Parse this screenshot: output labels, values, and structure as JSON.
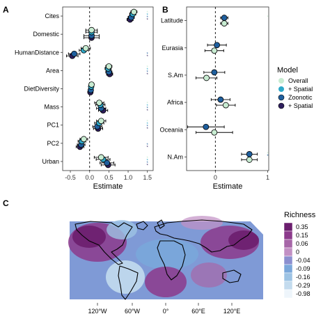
{
  "panel_labels": {
    "a": "A",
    "b": "B",
    "c": "C"
  },
  "colors": {
    "overall": "#c8ecd2",
    "overall_spatial": "#2fa9c9",
    "zoonotic": "#1f5f9e",
    "zoonotic_spatial": "#2e1f5e",
    "panel_bg": "#ffffff",
    "map_bg": "#ffffff"
  },
  "legend": {
    "title": "Model",
    "items": [
      "Overall",
      "+ Spatial",
      "Zoonotic",
      "+ Spatial"
    ]
  },
  "map_legend": {
    "title": "Richness",
    "labels": [
      "0.35",
      "0.15",
      "0.06",
      "0",
      "-0.04",
      "-0.09",
      "-0.16",
      "-0.29",
      "-0.98"
    ],
    "colors": [
      "#6b1e6e",
      "#8c3a8c",
      "#a766a8",
      "#c290c4",
      "#8b8fcf",
      "#7aa7da",
      "#9dc3e4",
      "#c3dbee",
      "#eef5fb"
    ]
  },
  "map_axis": {
    "ticks": [
      "120°W",
      "60°W",
      "0°",
      "60°E",
      "120°E"
    ]
  },
  "chart_data": [
    {
      "panel": "A",
      "type": "scatter",
      "xlabel": "Estimate",
      "xlim": [
        -0.7,
        1.65
      ],
      "xticks": [
        "-0.5",
        "0.0",
        "0.5",
        "1.0",
        "1.5"
      ],
      "xtick_values": [
        -0.5,
        0.0,
        0.5,
        1.0,
        1.5
      ],
      "categories": [
        "Cites",
        "Domestic",
        "HumanDistance",
        "Area",
        "DietDiversity",
        "Mass",
        "PC1",
        "PC2",
        "Urban"
      ],
      "series": [
        {
          "name": "Overall",
          "values": [
            1.15,
            0.05,
            -0.1,
            0.5,
            0.05,
            0.25,
            0.3,
            -0.15,
            0.3
          ],
          "ci": [
            0.08,
            0.15,
            0.12,
            0.08,
            0.06,
            0.12,
            0.12,
            0.1,
            0.18
          ]
        },
        {
          "name": "+ Spatial",
          "values": [
            1.12,
            0.05,
            -0.15,
            0.48,
            0.04,
            0.28,
            0.25,
            -0.2,
            0.35
          ],
          "ci": [
            0.08,
            0.15,
            0.12,
            0.08,
            0.06,
            0.12,
            0.12,
            0.1,
            0.18
          ]
        },
        {
          "name": "Zoonotic",
          "values": [
            1.08,
            0.05,
            -0.4,
            0.5,
            0.03,
            0.3,
            0.2,
            -0.22,
            0.45
          ],
          "ci": [
            0.08,
            0.2,
            0.15,
            0.08,
            0.06,
            0.12,
            0.12,
            0.1,
            0.18
          ]
        },
        {
          "name": "+ Spatial",
          "values": [
            1.05,
            0.05,
            -0.45,
            0.52,
            0.02,
            0.35,
            0.22,
            -0.25,
            0.48
          ],
          "ci": [
            0.08,
            0.2,
            0.15,
            0.08,
            0.06,
            0.12,
            0.12,
            0.1,
            0.18
          ]
        }
      ],
      "significance": [
        [
          true,
          true,
          true,
          true
        ],
        [
          false,
          false,
          false,
          false
        ],
        [
          false,
          false,
          true,
          true
        ],
        [
          true,
          true,
          true,
          true
        ],
        [
          false,
          false,
          false,
          false
        ],
        [
          true,
          true,
          true,
          true
        ],
        [
          true,
          true,
          true,
          true
        ],
        [
          false,
          false,
          true,
          true
        ],
        [
          true,
          true,
          true,
          true
        ]
      ],
      "significance_x": 1.5
    },
    {
      "panel": "B",
      "type": "scatter",
      "xlabel": "Estimate",
      "xlim": [
        -0.55,
        1.02
      ],
      "xticks": [
        "0",
        "1"
      ],
      "xtick_values": [
        0,
        1
      ],
      "categories": [
        "Latitude",
        "Eurasia",
        "S.Am",
        "Africa",
        "Oceania",
        "N.Am"
      ],
      "series": [
        {
          "name": "Overall",
          "values": [
            0.17,
            -0.02,
            -0.17,
            0.2,
            -0.02,
            0.65
          ],
          "ci": [
            0.07,
            0.18,
            0.2,
            0.18,
            0.35,
            0.15
          ]
        },
        {
          "name": "Zoonotic",
          "values": [
            0.17,
            0.03,
            -0.02,
            0.1,
            -0.18,
            0.65
          ],
          "ci": [
            0.07,
            0.18,
            0.2,
            0.18,
            0.35,
            0.15
          ]
        }
      ],
      "significance": [
        [
          true,
          false
        ],
        [
          false,
          false
        ],
        [
          false,
          false
        ],
        [
          false,
          false
        ],
        [
          false,
          false
        ],
        [
          true,
          true
        ]
      ],
      "significance_x": 1.0
    }
  ]
}
